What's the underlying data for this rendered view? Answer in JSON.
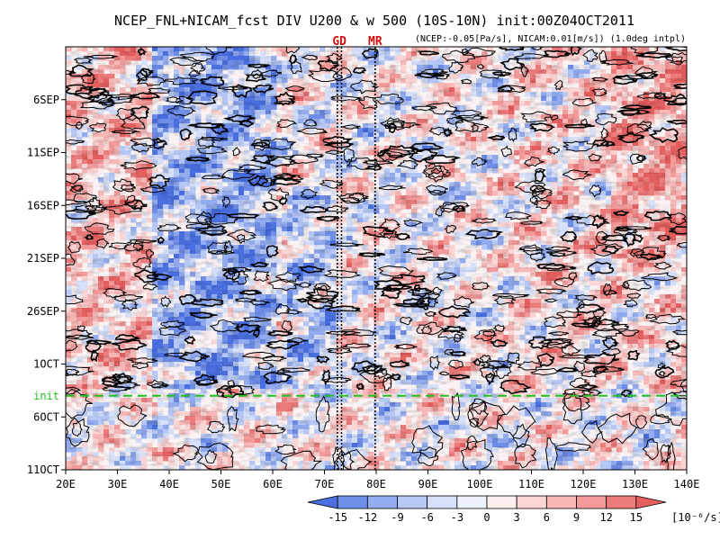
{
  "chart_data": {
    "type": "heatmap",
    "title": "NCEP_FNL+NICAM_fcst DIV U200 & w 500 (10S-10N) init:00Z04OCT2011",
    "subtitle": "(NCEP:-0.05[Pa/s], NICAM:0.01[m/s]) (1.0deg intpl)",
    "x_tick_labels": [
      "20E",
      "30E",
      "40E",
      "50E",
      "60E",
      "70E",
      "80E",
      "90E",
      "100E",
      "110E",
      "120E",
      "130E",
      "140E"
    ],
    "x_tick_values": [
      20,
      30,
      40,
      50,
      60,
      70,
      80,
      90,
      100,
      110,
      120,
      130,
      140
    ],
    "xlim": [
      20,
      140
    ],
    "y_tick_labels": [
      "6SEP",
      "11SEP",
      "16SEP",
      "21SEP",
      "26SEP",
      "1OCT",
      "6OCT",
      "11OCT"
    ],
    "y_tick_values": [
      5,
      10,
      15,
      20,
      25,
      30,
      35,
      40
    ],
    "ylim": [
      0,
      40
    ],
    "y_reversed": true,
    "init_line": {
      "label": "init",
      "y": 33,
      "color": "#22c020"
    },
    "markers": [
      {
        "label": "GD",
        "x": [
          72.5,
          73.3
        ],
        "color": "#d01010"
      },
      {
        "label": "MR",
        "x": [
          79.8
        ],
        "color": "#d01010"
      }
    ],
    "colorbar": {
      "ticks": [
        "-15",
        "-12",
        "-9",
        "-6",
        "-3",
        "0",
        "3",
        "6",
        "9",
        "12",
        "15"
      ],
      "unit": "[10⁻⁶/s]",
      "colors": [
        "#4a6fe0",
        "#6f8ee8",
        "#93acf0",
        "#b6c8f6",
        "#d6e0fa",
        "#edf1fc",
        "#fdeeee",
        "#fbd4d4",
        "#f8b8b8",
        "#f39a9a",
        "#ec7b7b",
        "#e55f5f"
      ]
    },
    "data_fields": [
      {
        "name": "DIV U200",
        "render": "shaded"
      },
      {
        "name": "w 500",
        "render": "contours"
      }
    ]
  }
}
